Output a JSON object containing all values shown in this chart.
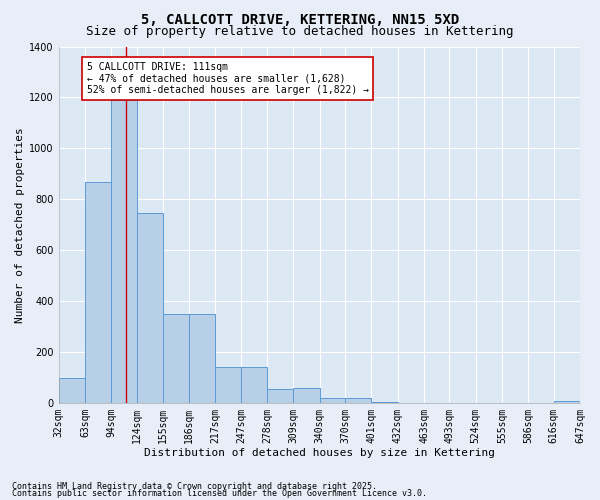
{
  "title": "5, CALLCOTT DRIVE, KETTERING, NN15 5XD",
  "subtitle": "Size of property relative to detached houses in Kettering",
  "xlabel": "Distribution of detached houses by size in Kettering",
  "ylabel": "Number of detached properties",
  "footnote1": "Contains HM Land Registry data © Crown copyright and database right 2025.",
  "footnote2": "Contains public sector information licensed under the Open Government Licence v3.0.",
  "annotation_line1": "5 CALLCOTT DRIVE: 111sqm",
  "annotation_line2": "← 47% of detached houses are smaller (1,628)",
  "annotation_line3": "52% of semi-detached houses are larger (1,822) →",
  "bar_left_edges": [
    32,
    63,
    94,
    124,
    155,
    186,
    217,
    247,
    278,
    309,
    340,
    370,
    401,
    432,
    463,
    493,
    524,
    555,
    586,
    616
  ],
  "bar_heights": [
    100,
    870,
    1190,
    745,
    350,
    350,
    143,
    143,
    55,
    60,
    20,
    20,
    5,
    0,
    0,
    0,
    0,
    0,
    0,
    10
  ],
  "bin_width": 31,
  "bar_color": "#b8cfe8",
  "bar_edge_color": "#5b9bd5",
  "plot_bg_color": "#dde8f5",
  "fig_bg_color": "#e8eef8",
  "grid_color": "#ffffff",
  "vline_x": 111,
  "vline_color": "#cc0000",
  "ylim": [
    0,
    1400
  ],
  "yticks": [
    0,
    200,
    400,
    600,
    800,
    1000,
    1200,
    1400
  ],
  "xtick_labels": [
    "32sqm",
    "63sqm",
    "94sqm",
    "124sqm",
    "155sqm",
    "186sqm",
    "217sqm",
    "247sqm",
    "278sqm",
    "309sqm",
    "340sqm",
    "370sqm",
    "401sqm",
    "432sqm",
    "463sqm",
    "493sqm",
    "524sqm",
    "555sqm",
    "586sqm",
    "616sqm",
    "647sqm"
  ],
  "annotation_box_facecolor": "#ffffff",
  "annotation_box_edgecolor": "#cc0000",
  "title_fontsize": 10,
  "subtitle_fontsize": 9,
  "axis_label_fontsize": 8,
  "tick_fontsize": 7,
  "annotation_fontsize": 7,
  "footnote_fontsize": 6
}
